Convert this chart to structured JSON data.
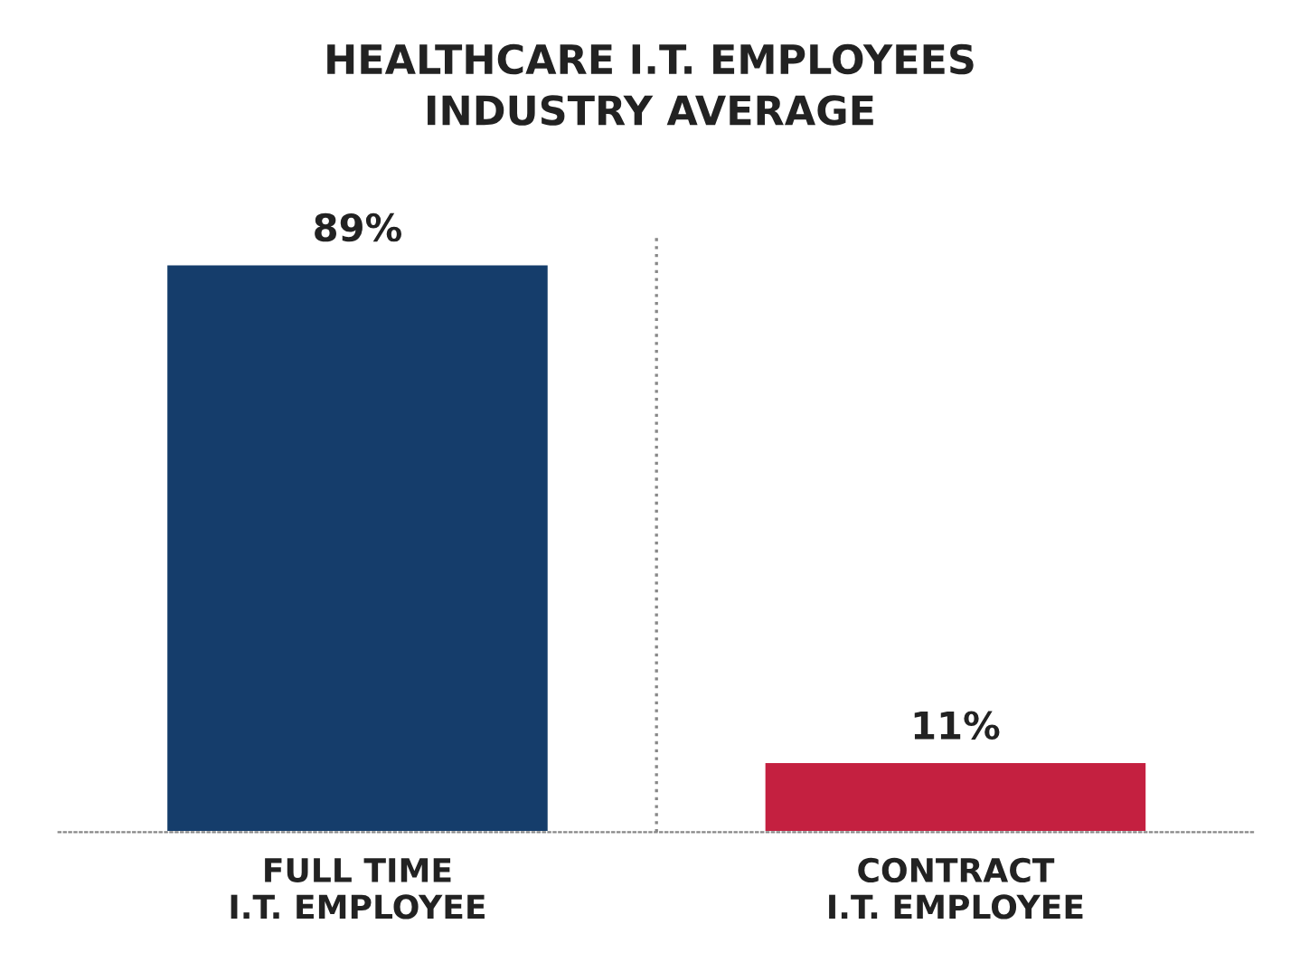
{
  "chart_data": {
    "type": "bar",
    "title": "HEALTHCARE I.T. EMPLOYEES\nINDUSTRY AVERAGE",
    "categories": [
      "FULL TIME\nI.T. EMPLOYEE",
      "CONTRACT\nI.T. EMPLOYEE"
    ],
    "values": [
      89,
      11
    ],
    "colors": [
      "#153d6b",
      "#c42040"
    ],
    "value_labels": [
      "89%",
      "11%"
    ],
    "grid": false,
    "legend": false
  }
}
